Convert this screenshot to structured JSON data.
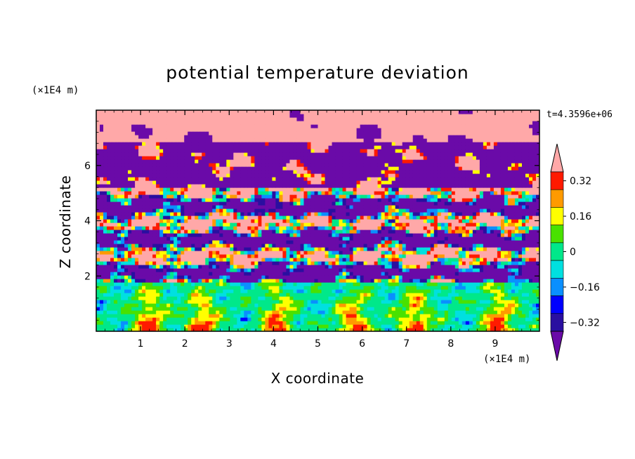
{
  "chart_data": {
    "type": "heatmap",
    "title": "potential temperature deviation",
    "xlabel": "X coordinate",
    "ylabel": "Z coordinate",
    "x_unit": "(×1E4 m)",
    "y_unit": "(×1E4 m)",
    "time_label": "t=4.3596e+06",
    "xlim": [
      0,
      10
    ],
    "ylim": [
      0,
      8
    ],
    "x_ticks": [
      1,
      2,
      3,
      4,
      5,
      6,
      7,
      8,
      9
    ],
    "y_ticks": [
      2,
      4,
      6
    ],
    "colorbar": {
      "levels": [
        -0.4,
        -0.32,
        -0.24,
        -0.16,
        -0.08,
        0,
        0.08,
        0.16,
        0.24,
        0.32,
        0.4
      ],
      "tick_labels": [
        "0.32",
        "0.16",
        "0",
        "−0.16",
        "−0.32"
      ],
      "tick_values": [
        0.32,
        0.16,
        0,
        -0.16,
        -0.32
      ],
      "colors": [
        "#6a0aa8",
        "#2a0fa0",
        "#0000ff",
        "#0a8fff",
        "#00e0e0",
        "#00e88a",
        "#49e100",
        "#ffff00",
        "#ff9a00",
        "#ff1a00",
        "#ffa8a8"
      ],
      "extend": "both"
    },
    "bands": [
      {
        "z_from": 6.9,
        "z_to": 8.0,
        "class": 10,
        "note": "pink"
      },
      {
        "z_from": 5.2,
        "z_to": 6.9,
        "class": 0,
        "note": "purple with pink patches"
      },
      {
        "z_from": 3.3,
        "z_to": 5.2,
        "class": 10,
        "note": "mixed pink/purple with colored rims"
      },
      {
        "z_from": 1.8,
        "z_to": 3.3,
        "class": 0,
        "note": "mixed"
      },
      {
        "z_from": 0.0,
        "z_to": 1.8,
        "class": 5,
        "note": "green/cyan boundary layer with yellow plumes"
      }
    ]
  }
}
